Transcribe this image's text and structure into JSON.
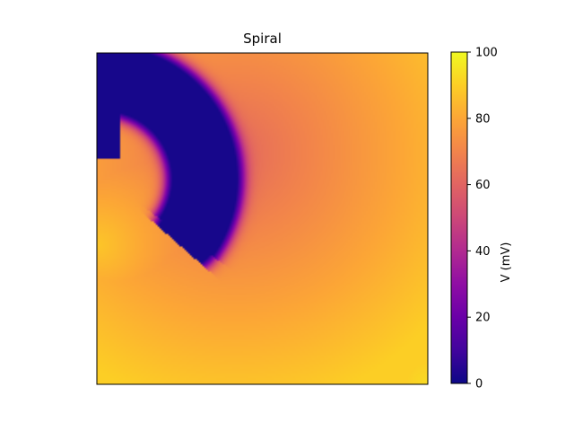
{
  "chart_data": {
    "type": "heatmap",
    "title": "Spiral",
    "xlabel": "",
    "ylabel": "",
    "x_ticks": [],
    "y_ticks": [],
    "colormap": "plasma",
    "colorbar": {
      "label": "V (mV)",
      "range": [
        0,
        100
      ],
      "ticks": [
        0,
        20,
        40,
        60,
        80,
        100
      ],
      "tick_labels": [
        "0",
        "20",
        "40",
        "60",
        "80",
        "100"
      ]
    },
    "field": {
      "description_units": "membrane potential V (mV) on a 2D tissue grid",
      "background_range": [
        62,
        90
      ],
      "low_region_value": 2,
      "rest_near_corner_value": 87
    },
    "colors": {
      "frame": "#000000",
      "low": "#0d0887",
      "high": "#f0f921"
    }
  }
}
